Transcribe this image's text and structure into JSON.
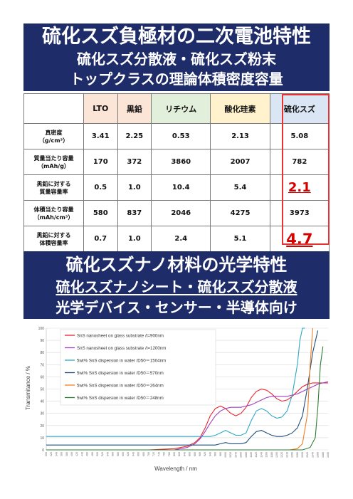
{
  "banner_top": {
    "line1": "硫化スズ負極材の二次電池特性",
    "line2": "硫化スズ分散液・硫化スズ粉末",
    "line3": "トップクラスの理論体積密度容量"
  },
  "table": {
    "headers": [
      "LTO",
      "黒鉛",
      "リチウム",
      "酸化珪素",
      "硫化スズ"
    ],
    "rows": [
      {
        "label1": "真密度",
        "label2": "（g/cm³）",
        "values": [
          "3.41",
          "2.25",
          "0.53",
          "2.13",
          "5.08"
        ]
      },
      {
        "label1": "質量当たり容量",
        "label2": "（mAh/g）",
        "values": [
          "170",
          "372",
          "3860",
          "2007",
          "782"
        ]
      },
      {
        "label1": "黒鉛に対する",
        "label2": "質量容量率",
        "values": [
          "0.5",
          "1.0",
          "10.4",
          "5.4",
          "2.1"
        ]
      },
      {
        "label1": "体積当たり容量",
        "label2": "（mAh/cm³）",
        "values": [
          "580",
          "837",
          "2046",
          "4275",
          "3973"
        ]
      },
      {
        "label1": "黒鉛に対する",
        "label2": "体積容量率",
        "values": [
          "0.7",
          "1.0",
          "2.4",
          "5.1",
          "4.7"
        ]
      }
    ]
  },
  "banner_bottom": {
    "line1": "硫化スズナノ材料の光学特性",
    "line2": "硫化スズナノシート・硫化スズ分散液",
    "line3": "光学デバイス・センサー・半導体向け"
  },
  "colors": {
    "banner": "#1f2c6a",
    "highlight_red": "#d40000",
    "series": [
      "#e8242c",
      "#a23fbd",
      "#2ea8c4",
      "#1f4e79",
      "#f07e26",
      "#2e7d32"
    ]
  },
  "chart_data": {
    "type": "line",
    "xlabel": "Wavelength / nm",
    "ylabel": "Transmitance / %",
    "ylim": [
      0,
      100
    ],
    "yticks": [
      "0",
      "10",
      "20",
      "30",
      "40",
      "50",
      "60",
      "70",
      "80",
      "90",
      "100"
    ],
    "xlim": [
      300,
      1400
    ],
    "xticks": [
      "300",
      "320",
      "340",
      "360",
      "380",
      "400",
      "420",
      "440",
      "460",
      "480",
      "500",
      "520",
      "540",
      "560",
      "580",
      "600",
      "620",
      "640",
      "660",
      "680",
      "700",
      "720",
      "740",
      "760",
      "780",
      "800",
      "820",
      "840",
      "860",
      "880",
      "900",
      "920",
      "940",
      "960",
      "980",
      "1000",
      "1020",
      "1040",
      "1060",
      "1080",
      "1100",
      "1120",
      "1140",
      "1160",
      "1180",
      "1200",
      "1220",
      "1240",
      "1260",
      "1280",
      "1300",
      "1320",
      "1340",
      "1360",
      "1380",
      "1400"
    ],
    "legend_position": "top-left",
    "grid": true,
    "series": [
      {
        "name": "SnS nanosheet on glass substrate /t=900nm",
        "x": [
          300,
          700,
          800,
          850,
          880,
          900,
          920,
          940,
          960,
          980,
          1000,
          1020,
          1040,
          1060,
          1080,
          1100,
          1120,
          1140,
          1160,
          1180,
          1200,
          1220,
          1240,
          1260,
          1280,
          1300,
          1320,
          1340,
          1360,
          1380,
          1400
        ],
        "y": [
          0,
          0,
          1,
          3,
          6,
          10,
          18,
          28,
          34,
          36,
          34,
          30,
          28,
          30,
          35,
          43,
          48,
          50,
          49,
          46,
          42,
          40,
          41,
          44,
          48,
          52,
          54,
          55,
          55,
          55,
          55
        ]
      },
      {
        "name": "SnS nanosheet on glass substrate /t=1200nm",
        "x": [
          300,
          800,
          850,
          880,
          900,
          920,
          940,
          960,
          980,
          1000,
          1020,
          1040,
          1060,
          1080,
          1100,
          1120,
          1140,
          1160,
          1180,
          1200,
          1220,
          1240,
          1260,
          1280,
          1300,
          1320,
          1340,
          1360,
          1380,
          1400
        ],
        "y": [
          0,
          0,
          2,
          5,
          9,
          15,
          22,
          28,
          32,
          34,
          35,
          35,
          35,
          36,
          37,
          39,
          41,
          43,
          44,
          44,
          44,
          44,
          45,
          46,
          48,
          50,
          52,
          54,
          55,
          56
        ]
      },
      {
        "name": "5wt% SnS dispersion in water /D50＝1504nm",
        "x": [
          300,
          800,
          850,
          880,
          900,
          920,
          940,
          960,
          980,
          1000,
          1020,
          1040,
          1060,
          1080,
          1100,
          1120,
          1140,
          1160,
          1180,
          1200,
          1220,
          1240,
          1260,
          1280,
          1290,
          1300,
          1310
        ],
        "y": [
          11,
          11,
          11,
          11,
          11,
          11,
          11,
          12,
          14,
          16,
          14,
          12,
          12,
          14,
          24,
          32,
          34,
          32,
          28,
          26,
          27,
          32,
          45,
          70,
          90,
          100,
          100
        ]
      },
      {
        "name": "5wt% SnS dispersion in water /D50＝570nm",
        "x": [
          300,
          800,
          850,
          880,
          900,
          920,
          940,
          960,
          980,
          1000,
          1020,
          1040,
          1060,
          1080,
          1100,
          1120,
          1140,
          1160,
          1180,
          1200,
          1220,
          1240,
          1260,
          1280,
          1300,
          1320,
          1340,
          1360
        ],
        "y": [
          4,
          4,
          4,
          4,
          4,
          4,
          4,
          4,
          5,
          6,
          5,
          5,
          5,
          6,
          11,
          15,
          16,
          14,
          12,
          11,
          11,
          12,
          14,
          18,
          28,
          52,
          80,
          98
        ]
      },
      {
        "name": "5wt% SnS dispersion in water /D50＝264nm",
        "x": [
          300,
          1250,
          1280,
          1300,
          1320,
          1330,
          1340
        ],
        "y": [
          0,
          0,
          1,
          5,
          30,
          70,
          100
        ]
      },
      {
        "name": "5wt% SnS dispersion in water /D50＝248nm",
        "x": [
          300,
          1300,
          1330,
          1350,
          1360,
          1370,
          1380
        ],
        "y": [
          0,
          0,
          2,
          10,
          35,
          70,
          85
        ]
      }
    ]
  }
}
